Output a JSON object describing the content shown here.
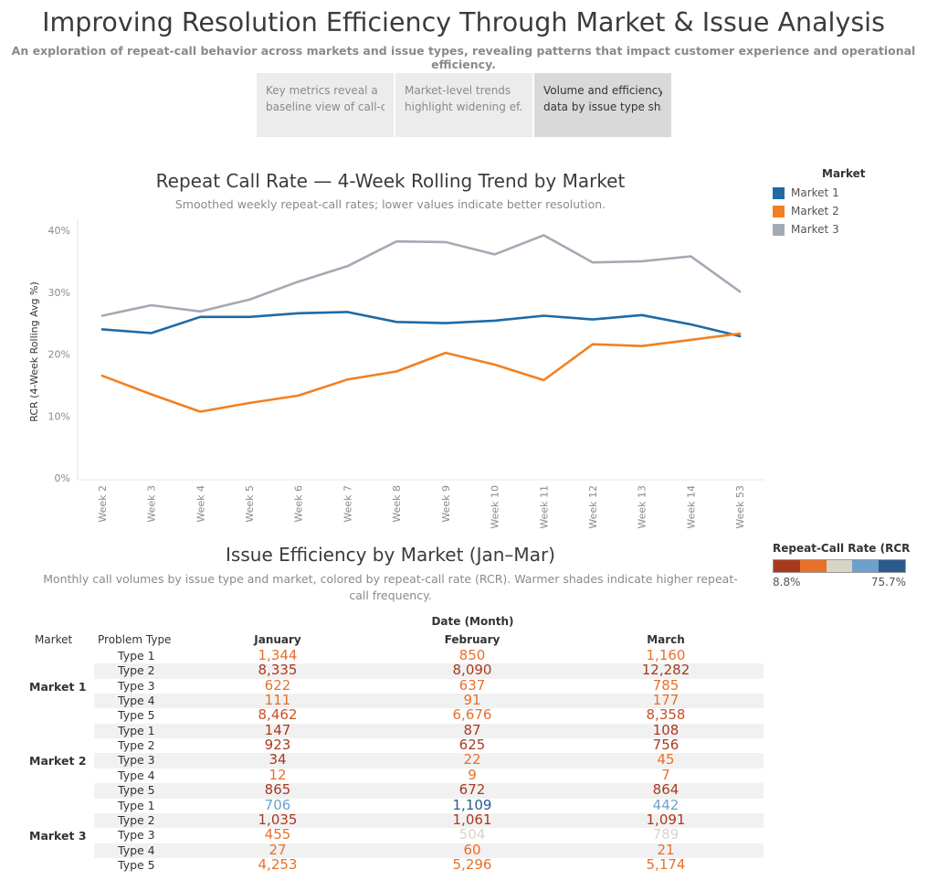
{
  "header": {
    "title": "Improving Resolution Efficiency Through Market & Issue Analysis",
    "subtitle": "An exploration of repeat-call behavior across markets and issue types, revealing patterns that impact customer experience and operational efficiency."
  },
  "story_tabs": [
    {
      "line1": "Key metrics reveal a",
      "line2": "baseline view of call-c..",
      "active": false
    },
    {
      "line1": "Market-level trends",
      "line2": "highlight widening ef..",
      "active": false
    },
    {
      "line1": "Volume and efficiency",
      "line2": "data by issue type sh..",
      "active": true
    }
  ],
  "legend": {
    "title": "Market",
    "items": [
      {
        "label": "Market 1",
        "color": "#1f6aa5"
      },
      {
        "label": "Market 2",
        "color": "#f28022"
      },
      {
        "label": "Market 3",
        "color": "#a3aab3"
      }
    ]
  },
  "heatmap_legend": {
    "title": "Repeat-Call Rate (RCR ..",
    "min_label": "8.8%",
    "max_label": "75.7%",
    "colors": [
      "#a8391f",
      "#e8702a",
      "#d8d4c8",
      "#6fa0cb",
      "#2c5a8c"
    ]
  },
  "chart_data": [
    {
      "type": "line",
      "title": "Repeat Call Rate — 4-Week Rolling Trend by Market",
      "subtitle": "Smoothed weekly repeat-call rates; lower values indicate better resolution.",
      "ylabel": "RCR (4-Week Rolling Avg %)",
      "xlabel": "",
      "ylim": [
        0,
        40
      ],
      "yticks": [
        "0%",
        "10%",
        "20%",
        "30%",
        "40%"
      ],
      "grid": false,
      "legend_position": "top-right",
      "x": [
        "Week 2",
        "Week 3",
        "Week 4",
        "Week 5",
        "Week 6",
        "Week 7",
        "Week 8",
        "Week 9",
        "Week 10",
        "Week 11",
        "Week 12",
        "Week 13",
        "Week 14",
        "Week 53"
      ],
      "series": [
        {
          "name": "Market 1",
          "color": "#1f6aa5",
          "values": [
            24.0,
            23.4,
            26.0,
            26.0,
            26.6,
            26.8,
            25.2,
            25.0,
            25.4,
            26.2,
            25.6,
            26.3,
            24.8,
            22.9
          ]
        },
        {
          "name": "Market 2",
          "color": "#f28022",
          "values": [
            16.5,
            13.5,
            10.7,
            12.1,
            13.3,
            15.9,
            17.2,
            20.2,
            18.3,
            15.8,
            21.6,
            21.3,
            22.3,
            23.3
          ]
        },
        {
          "name": "Market 3",
          "color": "#a3aab3",
          "values": [
            26.2,
            27.9,
            26.9,
            28.8,
            31.7,
            34.2,
            38.2,
            38.1,
            36.1,
            39.2,
            34.8,
            35.0,
            35.8,
            30.1
          ]
        }
      ]
    },
    {
      "type": "table",
      "title": "Issue Efficiency by Market (Jan–Mar)",
      "subtitle": "Monthly call volumes by issue type and market, colored by repeat-call rate (RCR). Warmer shades indicate higher repeat-call frequency.",
      "column_group_label": "Date (Month)",
      "row_headers": [
        "Market",
        "Problem Type"
      ],
      "columns": [
        "January",
        "February",
        "March"
      ],
      "groups": [
        {
          "market": "Market 1",
          "rows": [
            {
              "type": "Type 1",
              "values": [
                "1,344",
                "850",
                "1,160"
              ],
              "colors": [
                "#e8702a",
                "#e8702a",
                "#e8702a"
              ]
            },
            {
              "type": "Type 2",
              "values": [
                "8,335",
                "8,090",
                "12,282"
              ],
              "colors": [
                "#a8391f",
                "#a8391f",
                "#a8391f"
              ]
            },
            {
              "type": "Type 3",
              "values": [
                "622",
                "637",
                "785"
              ],
              "colors": [
                "#e8702a",
                "#e8702a",
                "#e8702a"
              ]
            },
            {
              "type": "Type 4",
              "values": [
                "111",
                "91",
                "177"
              ],
              "colors": [
                "#e8702a",
                "#e8702a",
                "#e8702a"
              ]
            },
            {
              "type": "Type 5",
              "values": [
                "8,462",
                "6,676",
                "8,358"
              ],
              "colors": [
                "#c9502a",
                "#e8702a",
                "#c9502a"
              ]
            }
          ]
        },
        {
          "market": "Market 2",
          "rows": [
            {
              "type": "Type 1",
              "values": [
                "147",
                "87",
                "108"
              ],
              "colors": [
                "#a8391f",
                "#a8391f",
                "#a8391f"
              ]
            },
            {
              "type": "Type 2",
              "values": [
                "923",
                "625",
                "756"
              ],
              "colors": [
                "#a8391f",
                "#a8391f",
                "#a8391f"
              ]
            },
            {
              "type": "Type 3",
              "values": [
                "34",
                "22",
                "45"
              ],
              "colors": [
                "#a8391f",
                "#e8702a",
                "#e8702a"
              ]
            },
            {
              "type": "Type 4",
              "values": [
                "12",
                "9",
                "7"
              ],
              "colors": [
                "#e8702a",
                "#e8702a",
                "#e8702a"
              ]
            },
            {
              "type": "Type 5",
              "values": [
                "865",
                "672",
                "864"
              ],
              "colors": [
                "#a8391f",
                "#a8391f",
                "#a8391f"
              ]
            }
          ]
        },
        {
          "market": "Market 3",
          "rows": [
            {
              "type": "Type 1",
              "values": [
                "706",
                "1,109",
                "442"
              ],
              "colors": [
                "#6fa0cb",
                "#2c5a8c",
                "#6fa0cb"
              ]
            },
            {
              "type": "Type 2",
              "values": [
                "1,035",
                "1,061",
                "1,091"
              ],
              "colors": [
                "#a8391f",
                "#a8391f",
                "#a8391f"
              ]
            },
            {
              "type": "Type 3",
              "values": [
                "455",
                "504",
                "789"
              ],
              "colors": [
                "#e8702a",
                "#d8d4c8",
                "#d8d4c8"
              ]
            },
            {
              "type": "Type 4",
              "values": [
                "27",
                "60",
                "21"
              ],
              "colors": [
                "#e8702a",
                "#e8702a",
                "#e8702a"
              ]
            },
            {
              "type": "Type 5",
              "values": [
                "4,253",
                "5,296",
                "5,174"
              ],
              "colors": [
                "#e8702a",
                "#e8702a",
                "#e8702a"
              ]
            }
          ]
        }
      ]
    }
  ]
}
